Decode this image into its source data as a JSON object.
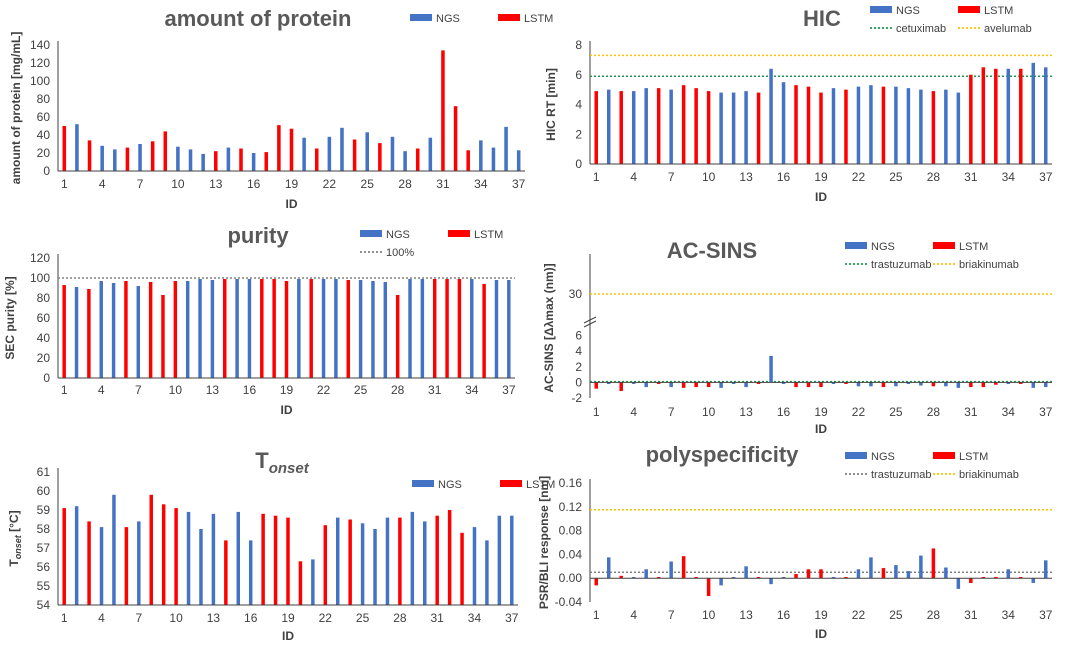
{
  "colors": {
    "ngs": "#4472C4",
    "lstm": "#FF0000",
    "green": "#1F9A4A",
    "orange": "#FFC000",
    "gray": "#808080",
    "axis": "#404040",
    "grid": "#D9D9D9"
  },
  "chart_data": [
    {
      "id": "protein",
      "type": "bar",
      "title": "amount of protein",
      "xlabel": "ID",
      "ylabel": "amount of protein [mg/mL]",
      "ylim": [
        0,
        140
      ],
      "yticks": [
        "0",
        "20",
        "40",
        "60",
        "80",
        "100",
        "120",
        "140"
      ],
      "xticks": [
        "1",
        "4",
        "7",
        "10",
        "13",
        "16",
        "19",
        "22",
        "25",
        "28",
        "31",
        "34",
        "37"
      ],
      "legend": [
        "NGS",
        "LSTM"
      ],
      "legend_position": "top-right",
      "groups": [
        "LSTM",
        "NGS",
        "LSTM",
        "NGS",
        "NGS",
        "LSTM",
        "NGS",
        "LSTM",
        "LSTM",
        "NGS",
        "NGS",
        "NGS",
        "LSTM",
        "NGS",
        "LSTM",
        "NGS",
        "LSTM",
        "LSTM",
        "LSTM",
        "NGS",
        "LSTM",
        "NGS",
        "NGS",
        "LSTM",
        "NGS",
        "LSTM",
        "NGS",
        "NGS",
        "LSTM",
        "NGS",
        "LSTM",
        "LSTM",
        "LSTM",
        "NGS",
        "NGS",
        "NGS",
        "NGS"
      ],
      "values": [
        50,
        52,
        34,
        28,
        24,
        26,
        30,
        33,
        44,
        27,
        24,
        19,
        22,
        26,
        25,
        20,
        21,
        51,
        47,
        37,
        25,
        38,
        48,
        35,
        43,
        31,
        38,
        22,
        25,
        37,
        134,
        72,
        23,
        34,
        26,
        49,
        23
      ]
    },
    {
      "id": "hic",
      "type": "bar",
      "title": "HIC",
      "xlabel": "ID",
      "ylabel": "HIC RT [min]",
      "ylim": [
        0,
        8
      ],
      "yticks": [
        "0",
        "2",
        "4",
        "6",
        "8"
      ],
      "xticks": [
        "1",
        "4",
        "7",
        "10",
        "13",
        "16",
        "19",
        "22",
        "25",
        "28",
        "31",
        "34",
        "37"
      ],
      "legend": [
        "NGS",
        "LSTM",
        "cetuximab",
        "avelumab"
      ],
      "legend_position": "top-right",
      "reference_lines": [
        {
          "name": "cetuximab",
          "value": 5.9,
          "color": "green"
        },
        {
          "name": "avelumab",
          "value": 7.3,
          "color": "orange"
        }
      ],
      "groups": [
        "LSTM",
        "NGS",
        "LSTM",
        "NGS",
        "NGS",
        "LSTM",
        "NGS",
        "LSTM",
        "LSTM",
        "LSTM",
        "NGS",
        "NGS",
        "NGS",
        "LSTM",
        "NGS",
        "NGS",
        "LSTM",
        "LSTM",
        "LSTM",
        "NGS",
        "LSTM",
        "NGS",
        "NGS",
        "LSTM",
        "NGS",
        "NGS",
        "NGS",
        "LSTM",
        "NGS",
        "NGS",
        "LSTM",
        "LSTM",
        "LSTM",
        "NGS",
        "LSTM",
        "NGS",
        "NGS"
      ],
      "values": [
        4.9,
        5.0,
        4.9,
        4.9,
        5.1,
        5.1,
        5.0,
        5.3,
        5.1,
        4.9,
        4.8,
        4.8,
        4.9,
        4.8,
        6.4,
        5.5,
        5.3,
        5.2,
        4.8,
        5.1,
        5.0,
        5.2,
        5.3,
        5.2,
        5.2,
        5.1,
        5.0,
        4.9,
        5.0,
        4.8,
        6.0,
        6.5,
        6.4,
        6.4,
        6.4,
        6.8,
        6.5
      ]
    },
    {
      "id": "purity",
      "type": "bar",
      "title": "purity",
      "xlabel": "ID",
      "ylabel": "SEC purity [%]",
      "ylim": [
        0,
        120
      ],
      "yticks": [
        "0",
        "20",
        "40",
        "60",
        "80",
        "100",
        "120"
      ],
      "xticks": [
        "1",
        "4",
        "7",
        "10",
        "13",
        "16",
        "19",
        "22",
        "25",
        "28",
        "31",
        "34",
        "37"
      ],
      "legend": [
        "NGS",
        "LSTM",
        "100%"
      ],
      "legend_position": "top-right",
      "reference_lines": [
        {
          "name": "100%",
          "value": 100,
          "color": "gray"
        }
      ],
      "groups": [
        "LSTM",
        "NGS",
        "LSTM",
        "NGS",
        "NGS",
        "LSTM",
        "NGS",
        "LSTM",
        "LSTM",
        "LSTM",
        "NGS",
        "NGS",
        "NGS",
        "LSTM",
        "NGS",
        "NGS",
        "LSTM",
        "LSTM",
        "LSTM",
        "NGS",
        "LSTM",
        "NGS",
        "NGS",
        "LSTM",
        "NGS",
        "NGS",
        "NGS",
        "LSTM",
        "NGS",
        "NGS",
        "LSTM",
        "LSTM",
        "LSTM",
        "NGS",
        "LSTM",
        "NGS",
        "NGS"
      ],
      "values": [
        93,
        91,
        89,
        97,
        95,
        97,
        92,
        96,
        83,
        97,
        97,
        99,
        98,
        99,
        99,
        99,
        99,
        99,
        97,
        99,
        99,
        99,
        99,
        98,
        98,
        97,
        96,
        83,
        99,
        99,
        99,
        99,
        99,
        99,
        94,
        98,
        98
      ]
    },
    {
      "id": "acsins",
      "type": "bar",
      "title": "AC-SINS",
      "xlabel": "ID",
      "ylabel": "AC-SINS [Δλmax (nm)]",
      "ylim": [
        -2,
        8
      ],
      "yticks": [
        "-2",
        "0",
        "2",
        "4",
        "6",
        "30"
      ],
      "axis_break": true,
      "xticks": [
        "1",
        "4",
        "7",
        "10",
        "13",
        "16",
        "19",
        "22",
        "25",
        "28",
        "31",
        "34",
        "37"
      ],
      "legend": [
        "NGS",
        "LSTM",
        "trastuzumab",
        "briakinumab"
      ],
      "legend_position": "top-right",
      "reference_lines": [
        {
          "name": "trastuzumab",
          "value": 0.1,
          "color": "green"
        },
        {
          "name": "briakinumab",
          "value": 30,
          "color": "orange"
        }
      ],
      "groups": [
        "LSTM",
        "NGS",
        "LSTM",
        "NGS",
        "NGS",
        "LSTM",
        "NGS",
        "LSTM",
        "LSTM",
        "LSTM",
        "NGS",
        "NGS",
        "NGS",
        "LSTM",
        "NGS",
        "NGS",
        "LSTM",
        "LSTM",
        "LSTM",
        "NGS",
        "LSTM",
        "NGS",
        "NGS",
        "LSTM",
        "NGS",
        "NGS",
        "NGS",
        "LSTM",
        "NGS",
        "NGS",
        "LSTM",
        "LSTM",
        "LSTM",
        "NGS",
        "LSTM",
        "NGS",
        "NGS"
      ],
      "values": [
        -0.8,
        -0.2,
        -1.1,
        -0.2,
        -0.6,
        -0.2,
        -0.6,
        -0.7,
        -0.6,
        -0.6,
        -0.7,
        -0.2,
        -0.6,
        -0.2,
        3.4,
        -0.2,
        -0.6,
        -0.6,
        -0.6,
        -0.2,
        -0.2,
        -0.5,
        -0.5,
        -0.6,
        -0.5,
        -0.2,
        -0.4,
        -0.5,
        -0.5,
        -0.7,
        -0.6,
        -0.6,
        -0.3,
        -0.2,
        -0.2,
        -0.7,
        -0.6
      ]
    },
    {
      "id": "tonset",
      "type": "bar",
      "title": "T",
      "title_sub": "onset",
      "xlabel": "ID",
      "ylabel": "T",
      "ylabel_sub": "onset",
      "ylabel_tail": " [°C]",
      "ylim": [
        54,
        61
      ],
      "yticks": [
        "54",
        "55",
        "56",
        "57",
        "58",
        "59",
        "60",
        "61"
      ],
      "xticks": [
        "1",
        "4",
        "7",
        "10",
        "13",
        "16",
        "19",
        "22",
        "25",
        "28",
        "31",
        "34",
        "37"
      ],
      "legend": [
        "NGS",
        "LSTM"
      ],
      "legend_position": "top-right",
      "groups": [
        "LSTM",
        "NGS",
        "LSTM",
        "NGS",
        "NGS",
        "LSTM",
        "NGS",
        "LSTM",
        "LSTM",
        "LSTM",
        "NGS",
        "NGS",
        "NGS",
        "LSTM",
        "NGS",
        "NGS",
        "LSTM",
        "LSTM",
        "LSTM",
        "LSTM",
        "NGS",
        "LSTM",
        "NGS",
        "LSTM",
        "NGS",
        "NGS",
        "NGS",
        "LSTM",
        "NGS",
        "NGS",
        "LSTM",
        "LSTM",
        "LSTM",
        "NGS",
        "NGS",
        "NGS",
        "NGS"
      ],
      "values": [
        59.1,
        59.2,
        58.4,
        58.1,
        59.8,
        58.1,
        58.4,
        59.8,
        59.3,
        59.1,
        58.9,
        58.0,
        58.8,
        57.4,
        58.9,
        57.4,
        58.8,
        58.7,
        58.6,
        56.3,
        56.4,
        58.2,
        58.6,
        58.5,
        58.3,
        58.0,
        58.6,
        58.6,
        58.9,
        58.4,
        58.7,
        59.0,
        57.8,
        58.1,
        57.4,
        58.7,
        58.7
      ]
    },
    {
      "id": "poly",
      "type": "bar",
      "title": "polyspecificity",
      "xlabel": "ID",
      "ylabel": "PSR/BLI response [nm]",
      "ylim": [
        -0.04,
        0.16
      ],
      "yticks": [
        "-0.04",
        "0.00",
        "0.04",
        "0.08",
        "0.12",
        "0.16"
      ],
      "xticks": [
        "1",
        "4",
        "7",
        "10",
        "13",
        "16",
        "19",
        "22",
        "25",
        "28",
        "31",
        "34",
        "37"
      ],
      "legend": [
        "NGS",
        "LSTM",
        "trastuzumab",
        "briakinumab"
      ],
      "legend_position": "top-right",
      "reference_lines": [
        {
          "name": "trastuzumab",
          "value": 0.01,
          "color": "gray"
        },
        {
          "name": "briakinumab",
          "value": 0.115,
          "color": "orange"
        }
      ],
      "groups": [
        "LSTM",
        "NGS",
        "LSTM",
        "NGS",
        "NGS",
        "LSTM",
        "NGS",
        "LSTM",
        "LSTM",
        "LSTM",
        "NGS",
        "NGS",
        "NGS",
        "LSTM",
        "NGS",
        "NGS",
        "LSTM",
        "LSTM",
        "LSTM",
        "NGS",
        "LSTM",
        "NGS",
        "NGS",
        "LSTM",
        "NGS",
        "NGS",
        "NGS",
        "LSTM",
        "NGS",
        "NGS",
        "LSTM",
        "LSTM",
        "LSTM",
        "NGS",
        "LSTM",
        "NGS",
        "NGS"
      ],
      "values": [
        -0.012,
        0.035,
        0.004,
        0.002,
        0.015,
        0.002,
        0.028,
        0.037,
        0.002,
        -0.03,
        -0.012,
        0.002,
        0.02,
        0.002,
        -0.01,
        0.002,
        0.007,
        0.015,
        0.015,
        0.002,
        0.002,
        0.015,
        0.035,
        0.017,
        0.022,
        0.012,
        0.038,
        0.05,
        0.018,
        -0.018,
        -0.008,
        0.002,
        0.002,
        0.015,
        0.002,
        -0.008,
        0.03
      ]
    }
  ]
}
